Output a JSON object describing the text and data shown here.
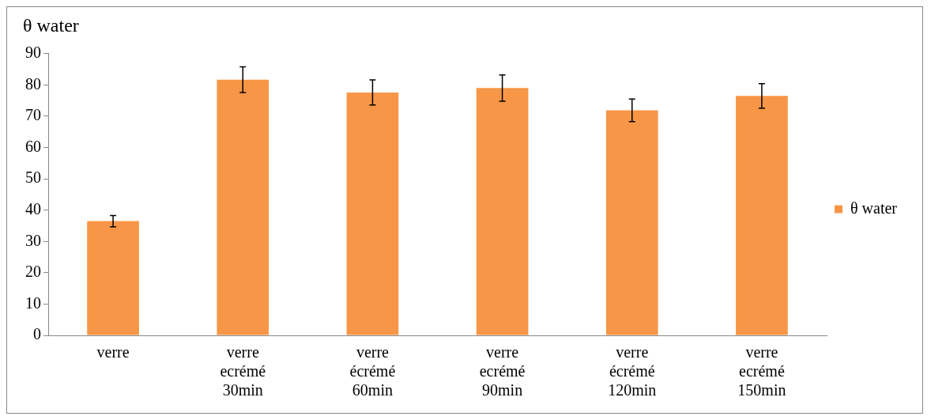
{
  "chart_data": {
    "type": "bar",
    "title": "θ water",
    "categories": [
      "verre",
      "verre ecrémé 30min",
      "verre écrémé 60min",
      "verre ecrémé 90min",
      "verre écrémé 120min",
      "verre ecrémé 150min"
    ],
    "series": [
      {
        "name": "θ water",
        "color": "#f79646",
        "values": [
          36.5,
          81.7,
          77.6,
          79,
          71.9,
          76.5
        ],
        "errors": [
          1.8,
          4.1,
          4,
          4.2,
          3.6,
          3.9
        ]
      }
    ],
    "ylim": [
      0,
      90
    ],
    "yticks": [
      0,
      10,
      20,
      30,
      40,
      50,
      60,
      70,
      80,
      90
    ],
    "grid": false,
    "legend": "right"
  }
}
